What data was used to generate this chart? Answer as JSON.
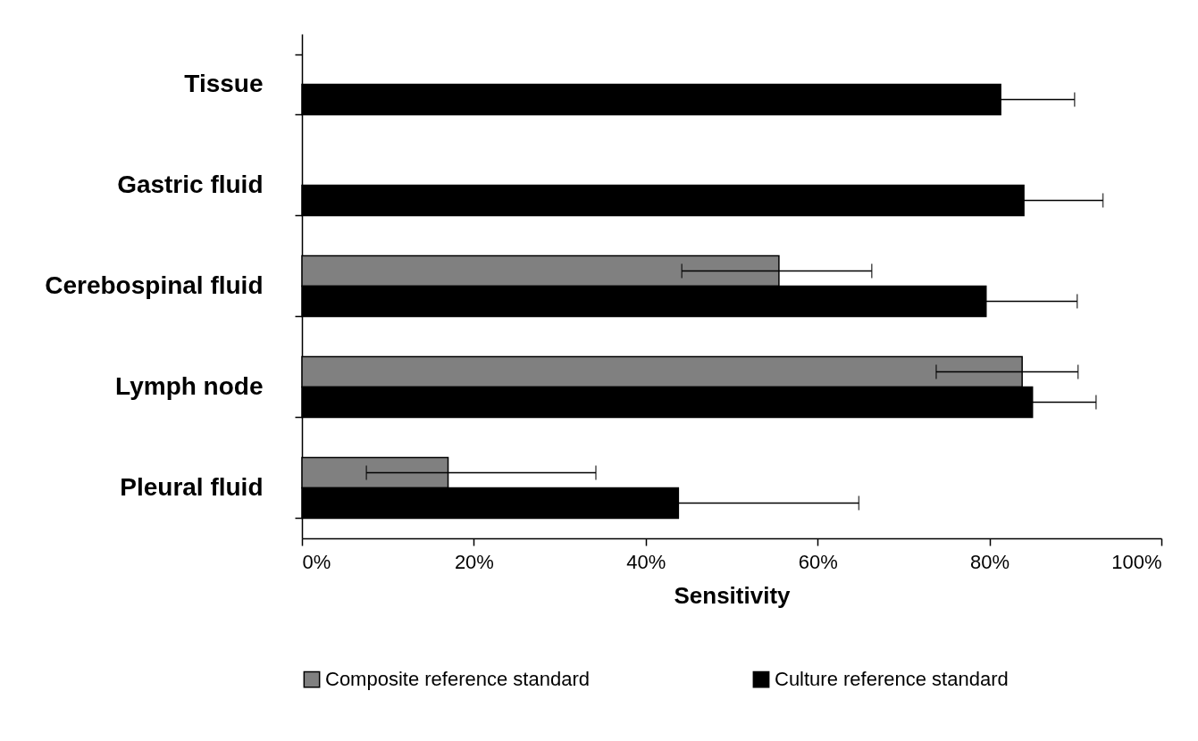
{
  "chart_data": {
    "type": "bar",
    "orientation": "horizontal",
    "xlabel": "Sensitivity",
    "categories": [
      "Tissue",
      "Gastric fluid",
      "Cerebospinal fluid",
      "Lymph node",
      "Pleural fluid"
    ],
    "series": [
      {
        "name": "Composite reference standard",
        "color": "#808080",
        "values": [
          null,
          null,
          55.5,
          83.8,
          17.0
        ],
        "errors": [
          null,
          null,
          [
            44.2,
            66.3
          ],
          [
            73.8,
            90.3
          ],
          [
            7.5,
            34.2
          ]
        ]
      },
      {
        "name": "Culture reference standard",
        "color": "#000000",
        "values": [
          81.3,
          84.0,
          79.6,
          85.0,
          43.8
        ],
        "errors": [
          [
            81.3,
            89.9
          ],
          [
            84.0,
            93.2
          ],
          [
            79.6,
            90.2
          ],
          [
            85.0,
            92.4
          ],
          [
            43.8,
            64.8
          ]
        ]
      }
    ],
    "xlim": [
      0,
      100
    ],
    "xticks": [
      {
        "value": 0,
        "label": "0%"
      },
      {
        "value": 20,
        "label": "20%"
      },
      {
        "value": 40,
        "label": "40%"
      },
      {
        "value": 60,
        "label": "60%"
      },
      {
        "value": 80,
        "label": "80%"
      },
      {
        "value": 100,
        "label": "100%"
      }
    ],
    "legend": "bottom"
  }
}
